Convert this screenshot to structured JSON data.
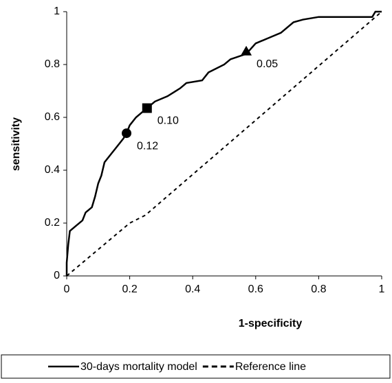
{
  "chart_data": {
    "type": "line",
    "xlabel": "1-specificity",
    "ylabel": "sensitivity",
    "xlim": [
      0,
      1
    ],
    "ylim": [
      0,
      1
    ],
    "xticks": [
      0,
      0.2,
      0.4,
      0.6,
      0.8,
      1
    ],
    "yticks": [
      0,
      0.2,
      0.4,
      0.6,
      0.8,
      1
    ],
    "series": [
      {
        "name": "30-days mortality model",
        "color": "#000000",
        "dashed": false,
        "x": [
          0,
          0,
          0.005,
          0.01,
          0.03,
          0.05,
          0.06,
          0.08,
          0.09,
          0.1,
          0.11,
          0.12,
          0.14,
          0.16,
          0.18,
          0.19,
          0.2,
          0.22,
          0.25,
          0.28,
          0.32,
          0.36,
          0.38,
          0.43,
          0.45,
          0.5,
          0.52,
          0.57,
          0.6,
          0.64,
          0.68,
          0.72,
          0.75,
          0.8,
          0.97,
          0.98,
          1
        ],
        "values": [
          0,
          0.05,
          0.12,
          0.17,
          0.19,
          0.21,
          0.24,
          0.26,
          0.3,
          0.35,
          0.38,
          0.43,
          0.46,
          0.49,
          0.52,
          0.54,
          0.57,
          0.6,
          0.63,
          0.66,
          0.68,
          0.71,
          0.73,
          0.74,
          0.77,
          0.8,
          0.82,
          0.84,
          0.88,
          0.9,
          0.92,
          0.96,
          0.97,
          0.98,
          0.98,
          1,
          1
        ]
      },
      {
        "name": "Reference line",
        "color": "#000000",
        "dashed": true,
        "x": [
          0,
          0.2,
          0.25,
          1
        ],
        "values": [
          0,
          0.2,
          0.23,
          1
        ]
      }
    ],
    "markers": [
      {
        "x": 0.19,
        "y": 0.54,
        "shape": "circle",
        "label": "0.12"
      },
      {
        "x": 0.255,
        "y": 0.635,
        "shape": "square",
        "label": "0.10"
      },
      {
        "x": 0.57,
        "y": 0.85,
        "shape": "triangle",
        "label": "0.05"
      }
    ]
  }
}
